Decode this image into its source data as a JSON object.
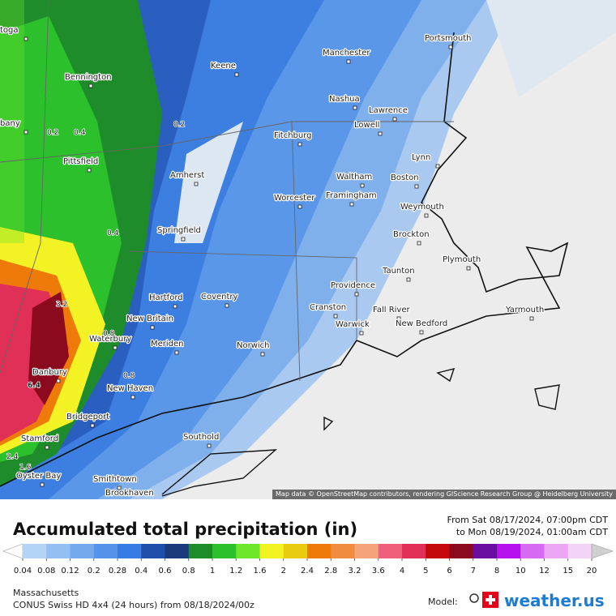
{
  "map": {
    "cities": [
      "toga",
      "Portsmouth",
      "Manchester",
      "Keene",
      "Bennington",
      "Nashua",
      "Lawrence",
      "Lowell",
      "bany",
      "Fitchburg",
      "Pittsfield",
      "Lynn",
      "Amherst",
      "Waltham",
      "Boston",
      "Framingham",
      "Worcester",
      "Weymouth",
      "Springfield",
      "Brockton",
      "Plymouth",
      "Taunton",
      "Providence",
      "Hartford",
      "Coventry",
      "Cranston",
      "Fall River",
      "Yarmouth",
      "New Britain",
      "Waterbury",
      "Warwick",
      "New Bedford",
      "Meriden",
      "Norwich",
      "Danbury",
      "New Haven",
      "Bridgeport",
      "Stamford",
      "Southold",
      "Oyster Bay",
      "Smithtown",
      "Brookhaven"
    ],
    "contour_labels": [
      "0.2",
      "0.4",
      "0.2",
      "0.4",
      "3.2",
      "0.8",
      "0.8",
      "6.4",
      "2.4",
      "1.6"
    ],
    "attribution": "Map data © OpenStreetMap contributors, rendering GIScience Research Group @ Heidelberg University"
  },
  "legend": {
    "title": "Accumulated total precipitation (in)",
    "from": "From Sat 08/17/2024, 07:00pm CDT",
    "to": "to Mon 08/19/2024, 01:00am CDT",
    "ticks": [
      0.04,
      0.08,
      0.12,
      0.2,
      0.28,
      0.4,
      0.6,
      0.8,
      1,
      1.2,
      1.6,
      2,
      2.4,
      2.8,
      3.2,
      3.6,
      4,
      5,
      6,
      7,
      8,
      10,
      12,
      15,
      20
    ],
    "under_color": "#ffffff",
    "colors": [
      "#b4d4f6",
      "#94bff2",
      "#74a9ee",
      "#5593ea",
      "#367ce2",
      "#1f4fa8",
      "#1a3a7c",
      "#1e8c2a",
      "#2cc02c",
      "#6ee62c",
      "#f2f224",
      "#e8cc10",
      "#ee7a0a",
      "#f08c40",
      "#f4a47a",
      "#f0607a",
      "#e03058",
      "#c40a0a",
      "#8c0a1e",
      "#6a0ea0",
      "#b612ee",
      "#d66af0",
      "#eaa6f2",
      "#f4d4f6"
    ],
    "over_color": "#cfcfcf"
  },
  "footer": {
    "region": "Massachusetts",
    "model": "CONUS Swiss HD 4x4 (24 hours) from 08/18/2024/00z",
    "model_label": "Model:",
    "brand": "weather.us"
  }
}
